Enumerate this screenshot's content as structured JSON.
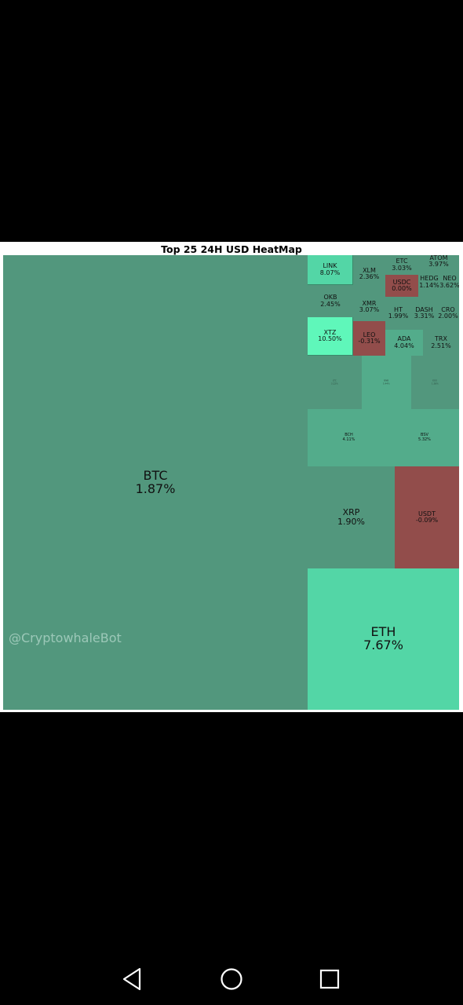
{
  "chart_data": {
    "type": "heatmap",
    "title": "Top 25 24H USD HeatMap",
    "colors": {
      "up_dark": "#52977d",
      "up_mid": "#53ac8b",
      "up_light": "#53d6a6",
      "up_bright": "#5ff7ba",
      "down": "#924d4b"
    },
    "tiles": [
      {
        "symbol": "BTC",
        "change": "1.87%",
        "value_pct": 1.87
      },
      {
        "symbol": "ETH",
        "change": "7.67%",
        "value_pct": 7.67
      },
      {
        "symbol": "XRP",
        "change": "1.90%",
        "value_pct": 1.9
      },
      {
        "symbol": "USDT",
        "change": "-0.09%",
        "value_pct": -0.09
      },
      {
        "symbol": "BCH",
        "change": "4.11%",
        "value_pct": 4.11
      },
      {
        "symbol": "BSV",
        "change": "5.32%",
        "value_pct": 5.32
      },
      {
        "symbol": "LTC",
        "change": "3.22%",
        "value_pct": 3.22
      },
      {
        "symbol": "BNB",
        "change": "5.44%",
        "value_pct": 5.44
      },
      {
        "symbol": "EOS",
        "change": "1.58%",
        "value_pct": 1.58
      },
      {
        "symbol": "XTZ",
        "change": "10.50%",
        "value_pct": 10.5
      },
      {
        "symbol": "LEO",
        "change": "-0.31%",
        "value_pct": -0.31
      },
      {
        "symbol": "ADA",
        "change": "4.04%",
        "value_pct": 4.04
      },
      {
        "symbol": "TRX",
        "change": "2.51%",
        "value_pct": 2.51
      },
      {
        "symbol": "OKB",
        "change": "2.45%",
        "value_pct": 2.45
      },
      {
        "symbol": "XMR",
        "change": "3.07%",
        "value_pct": 3.07
      },
      {
        "symbol": "HT",
        "change": "1.99%",
        "value_pct": 1.99
      },
      {
        "symbol": "DASH",
        "change": "3.31%",
        "value_pct": 3.31
      },
      {
        "symbol": "CRO",
        "change": "2.00%",
        "value_pct": 2.0
      },
      {
        "symbol": "LINK",
        "change": "8.07%",
        "value_pct": 8.07
      },
      {
        "symbol": "XLM",
        "change": "2.36%",
        "value_pct": 2.36
      },
      {
        "symbol": "ETC",
        "change": "3.03%",
        "value_pct": 3.03
      },
      {
        "symbol": "USDC",
        "change": "0.00%",
        "value_pct": 0.0
      },
      {
        "symbol": "ATOM",
        "change": "3.97%",
        "value_pct": 3.97
      },
      {
        "symbol": "HEDG",
        "change": "1.14%",
        "value_pct": 1.14
      },
      {
        "symbol": "NEO",
        "change": "3.62%",
        "value_pct": 3.62
      }
    ]
  },
  "watermark": "@CryptowhaleBot",
  "nav": {
    "back_icon": "back-triangle-icon",
    "home_icon": "home-circle-icon",
    "recents_icon": "recents-square-icon"
  }
}
